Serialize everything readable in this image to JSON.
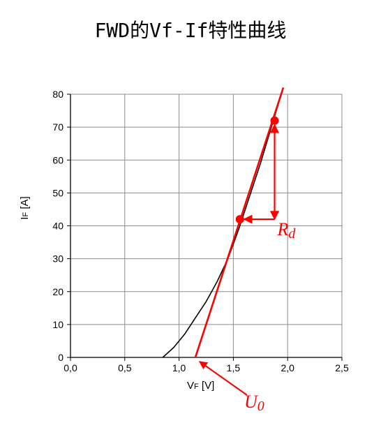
{
  "chart_data": {
    "type": "line",
    "title": "FWD的Vf-If特性曲线",
    "xlabel": "VF [V]",
    "ylabel": "IF [A]",
    "xlim": [
      0,
      2.5
    ],
    "ylim": [
      0,
      80
    ],
    "xticks": [
      "0,0",
      "0,5",
      "1,0",
      "1,5",
      "2,0",
      "2,5"
    ],
    "xtick_values": [
      0,
      0.5,
      1.0,
      1.5,
      2.0,
      2.5
    ],
    "yticks": [
      "0",
      "10",
      "20",
      "30",
      "40",
      "50",
      "60",
      "70",
      "80"
    ],
    "ytick_values": [
      0,
      10,
      20,
      30,
      40,
      50,
      60,
      70,
      80
    ],
    "grid": true,
    "series": [
      {
        "color": "#000000",
        "x": [
          0.85,
          0.95,
          1.05,
          1.15,
          1.25,
          1.35,
          1.45,
          1.55,
          1.65,
          1.75,
          1.85,
          1.96
        ],
        "y": [
          0,
          3,
          7,
          12,
          17,
          23,
          30,
          39,
          49,
          59,
          70,
          82
        ]
      },
      {
        "color": "#ff0000",
        "x": [
          1.15,
          1.96
        ],
        "y": [
          0,
          82
        ]
      }
    ],
    "points": [
      {
        "x": 1.56,
        "y": 42,
        "color": "#ff0000"
      },
      {
        "x": 1.88,
        "y": 72,
        "color": "#ff0000"
      }
    ],
    "annotations": [
      {
        "text": "Rd",
        "subscript": "d",
        "main": "R",
        "color": "#ff0000"
      },
      {
        "text": "U0",
        "subscript": "0",
        "main": "U",
        "color": "#ff0000"
      }
    ],
    "accent_color": "#ff0000"
  }
}
